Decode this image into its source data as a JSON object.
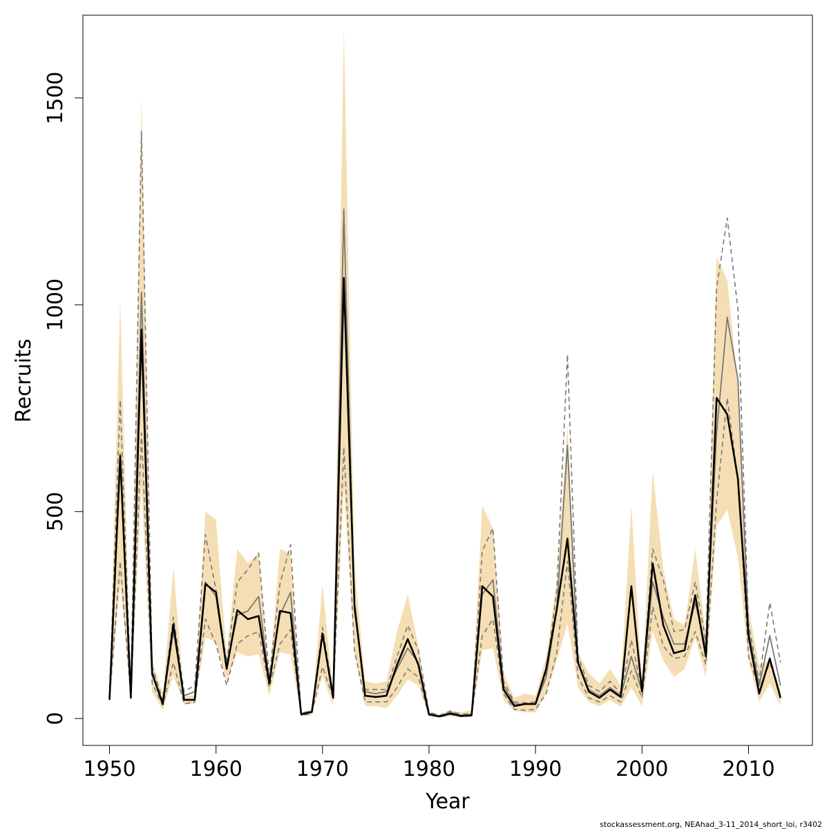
{
  "chart_data": {
    "type": "line",
    "title": "",
    "xlabel": "Year",
    "ylabel": "Recruits",
    "xlim": [
      1947.5,
      2016.0
    ],
    "ylim": [
      -65,
      1700
    ],
    "x_ticks": [
      1950,
      1960,
      1970,
      1980,
      1990,
      2000,
      2010
    ],
    "y_ticks": [
      0,
      500,
      1000,
      1500
    ],
    "grid": false,
    "legend": "none",
    "colors": {
      "band": "#f5deb3",
      "estimate": "#000000",
      "alt_estimate": "#777777",
      "alt_bounds": "#777777"
    },
    "years": [
      1950,
      1951,
      1952,
      1953,
      1954,
      1955,
      1956,
      1957,
      1958,
      1959,
      1960,
      1961,
      1962,
      1963,
      1964,
      1965,
      1966,
      1967,
      1968,
      1969,
      1970,
      1971,
      1972,
      1973,
      1974,
      1975,
      1976,
      1977,
      1978,
      1979,
      1980,
      1981,
      1982,
      1983,
      1984,
      1985,
      1986,
      1987,
      1988,
      1989,
      1990,
      1991,
      1992,
      1993,
      1994,
      1995,
      1996,
      1997,
      1998,
      1999,
      2000,
      2001,
      2002,
      2003,
      2004,
      2005,
      2006,
      2007,
      2008,
      2009,
      2010,
      2011,
      2012,
      2013
    ],
    "series": [
      {
        "role": "band_upper",
        "values": [
          65,
          1010,
          60,
          1500,
          140,
          60,
          365,
          55,
          55,
          500,
          480,
          150,
          410,
          375,
          400,
          100,
          410,
          400,
          15,
          20,
          325,
          60,
          1670,
          370,
          90,
          85,
          90,
          210,
          300,
          175,
          15,
          10,
          20,
          15,
          20,
          515,
          460,
          110,
          50,
          60,
          55,
          150,
          330,
          710,
          160,
          110,
          85,
          120,
          80,
          515,
          80,
          600,
          360,
          240,
          225,
          410,
          200,
          1115,
          1060,
          810,
          265,
          130,
          140,
          70
        ]
      },
      {
        "role": "band_lower",
        "values": [
          30,
          330,
          45,
          560,
          65,
          20,
          105,
          35,
          35,
          195,
          185,
          90,
          160,
          150,
          155,
          55,
          160,
          155,
          5,
          8,
          105,
          30,
          560,
          160,
          30,
          30,
          25,
          55,
          95,
          80,
          5,
          3,
          5,
          3,
          3,
          165,
          170,
          45,
          18,
          15,
          15,
          60,
          140,
          230,
          75,
          40,
          30,
          45,
          28,
          75,
          30,
          210,
          140,
          100,
          120,
          195,
          100,
          465,
          505,
          390,
          140,
          40,
          85,
          30
        ]
      },
      {
        "role": "alt_estimate",
        "values": [
          50,
          640,
          60,
          1030,
          105,
          38,
          210,
          55,
          65,
          330,
          295,
          125,
          250,
          260,
          295,
          90,
          250,
          305,
          12,
          18,
          205,
          60,
          1225,
          260,
          65,
          60,
          65,
          120,
          170,
          135,
          12,
          6,
          15,
          8,
          10,
          300,
          335,
          80,
          35,
          35,
          35,
          100,
          265,
          660,
          135,
          70,
          55,
          75,
          55,
          150,
          65,
          330,
          245,
          180,
          180,
          280,
          170,
          690,
          970,
          820,
          210,
          80,
          200,
          80
        ]
      },
      {
        "role": "alt_upper",
        "values": [
          55,
          770,
          65,
          1420,
          125,
          45,
          245,
          65,
          80,
          445,
          310,
          135,
          330,
          360,
          400,
          100,
          325,
          420,
          12,
          20,
          220,
          60,
          1235,
          275,
          70,
          70,
          70,
          150,
          225,
          165,
          15,
          8,
          18,
          10,
          12,
          405,
          460,
          90,
          40,
          38,
          40,
          110,
          310,
          880,
          150,
          80,
          65,
          90,
          60,
          190,
          70,
          410,
          335,
          210,
          215,
          330,
          185,
          1040,
          1210,
          990,
          230,
          90,
          280,
          135
        ]
      },
      {
        "role": "alt_lower",
        "values": [
          45,
          380,
          50,
          690,
          85,
          32,
          135,
          35,
          40,
          240,
          180,
          80,
          180,
          200,
          210,
          75,
          180,
          215,
          8,
          12,
          125,
          50,
          655,
          165,
          40,
          40,
          40,
          75,
          120,
          100,
          8,
          4,
          10,
          5,
          6,
          200,
          240,
          60,
          22,
          20,
          22,
          60,
          160,
          380,
          100,
          50,
          40,
          55,
          40,
          115,
          50,
          270,
          175,
          145,
          150,
          210,
          130,
          525,
          775,
          580,
          150,
          70,
          135,
          55
        ]
      },
      {
        "role": "estimate",
        "values": [
          45,
          635,
          50,
          940,
          110,
          35,
          228,
          45,
          45,
          325,
          305,
          120,
          262,
          240,
          248,
          85,
          260,
          255,
          10,
          16,
          205,
          50,
          1065,
          275,
          55,
          52,
          55,
          130,
          192,
          130,
          10,
          5,
          12,
          6,
          8,
          320,
          295,
          70,
          30,
          35,
          35,
          120,
          265,
          435,
          135,
          65,
          50,
          70,
          52,
          320,
          65,
          375,
          225,
          158,
          165,
          298,
          150,
          775,
          735,
          580,
          200,
          60,
          145,
          50
        ]
      }
    ]
  },
  "credit": "stockassessment.org, NEAhad_3-11_2014_short_loi, r3402"
}
